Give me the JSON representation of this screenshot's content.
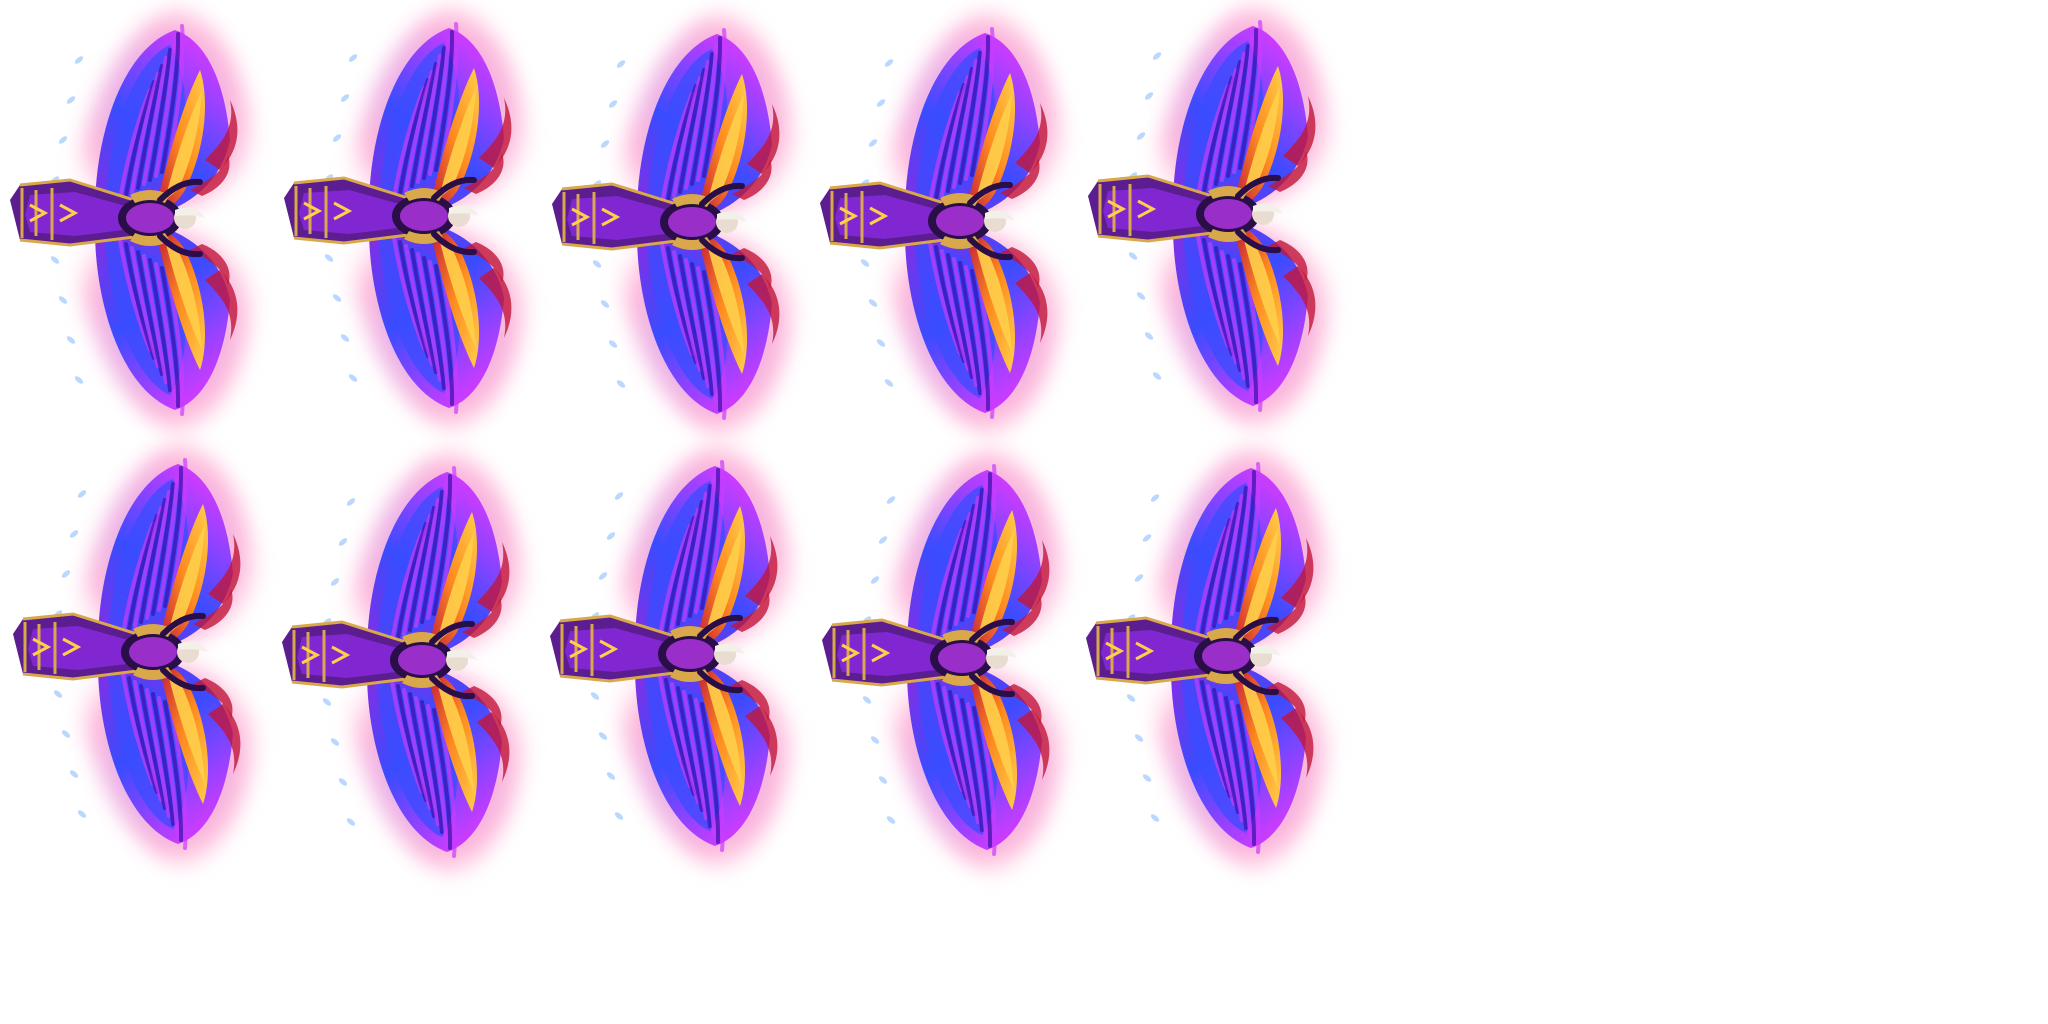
{
  "sprite_sheet": {
    "subject": "winged-character-sprite",
    "rows": 2,
    "columns": 5,
    "frame_count": 10,
    "colors": {
      "background": "#ffffff",
      "aura_pink": "#ff7ab8",
      "aura_violet": "#a36bff",
      "feather_violet": "#8a2be2",
      "feather_magenta": "#c93cff",
      "feather_blue": "#3a4cff",
      "feather_deep": "#3a0fa8",
      "flame_gold": "#ffcf4a",
      "flame_orange": "#ff8a1f",
      "flame_red": "#c0163a",
      "robe_purple": "#5b1d8f",
      "robe_dark": "#2a0e47",
      "trim_gold": "#d8a84a",
      "spark_blue": "#9cc7ff"
    }
  }
}
